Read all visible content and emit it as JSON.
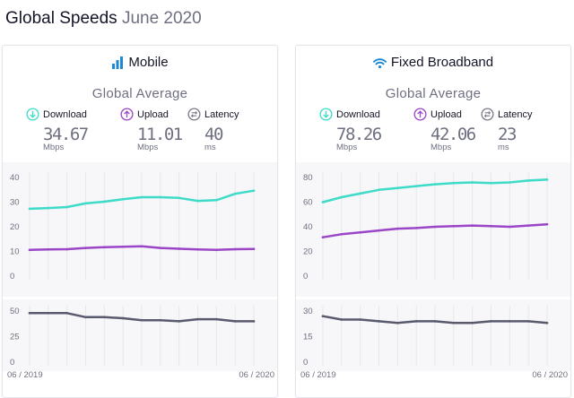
{
  "page": {
    "title": "Global Speeds",
    "date": "June 2020"
  },
  "colors": {
    "download": "#3ddbc8",
    "upload": "#9b45c7",
    "latency": "#5a5a6e",
    "icon_blue": "#1e88d3"
  },
  "labels": {
    "global_average": "Global Average",
    "download": "Download",
    "upload": "Upload",
    "latency": "Latency",
    "x_start": "06 / 2019",
    "x_end": "06 / 2020"
  },
  "cards": [
    {
      "title": "Mobile",
      "icon": "signal-bars-icon",
      "download": {
        "value": "34.67",
        "unit": "Mbps"
      },
      "upload": {
        "value": "11.01",
        "unit": "Mbps"
      },
      "latency": {
        "value": "40",
        "unit": "ms"
      }
    },
    {
      "title": "Fixed Broadband",
      "icon": "wifi-icon",
      "download": {
        "value": "78.26",
        "unit": "Mbps"
      },
      "upload": {
        "value": "42.06",
        "unit": "Mbps"
      },
      "latency": {
        "value": "23",
        "unit": "ms"
      }
    }
  ],
  "chart_data": [
    {
      "type": "line",
      "title": "Mobile",
      "panel": "speed",
      "x": [
        "06/2019",
        "07/2019",
        "08/2019",
        "09/2019",
        "10/2019",
        "11/2019",
        "12/2019",
        "01/2020",
        "02/2020",
        "03/2020",
        "04/2020",
        "05/2020",
        "06/2020"
      ],
      "ylim": [
        0,
        40
      ],
      "yticks": [
        0,
        10,
        20,
        30,
        40
      ],
      "series": [
        {
          "name": "Download",
          "values": [
            27.3,
            27.6,
            28.0,
            29.5,
            30.2,
            31.2,
            32.0,
            32.0,
            31.7,
            30.5,
            30.8,
            33.4,
            34.67
          ]
        },
        {
          "name": "Upload",
          "values": [
            10.6,
            10.8,
            10.9,
            11.4,
            11.7,
            11.9,
            12.1,
            11.4,
            11.1,
            10.8,
            10.6,
            10.9,
            11.01
          ]
        }
      ]
    },
    {
      "type": "line",
      "title": "Mobile",
      "panel": "latency",
      "x": [
        "06/2019",
        "07/2019",
        "08/2019",
        "09/2019",
        "10/2019",
        "11/2019",
        "12/2019",
        "01/2020",
        "02/2020",
        "03/2020",
        "04/2020",
        "05/2020",
        "06/2020"
      ],
      "ylim": [
        0,
        50
      ],
      "yticks": [
        0,
        25,
        50
      ],
      "series": [
        {
          "name": "Latency",
          "values": [
            48,
            48,
            48,
            44,
            44,
            43,
            41,
            41,
            40,
            42,
            42,
            40,
            40
          ]
        }
      ]
    },
    {
      "type": "line",
      "title": "Fixed Broadband",
      "panel": "speed",
      "x": [
        "06/2019",
        "07/2019",
        "08/2019",
        "09/2019",
        "10/2019",
        "11/2019",
        "12/2019",
        "01/2020",
        "02/2020",
        "03/2020",
        "04/2020",
        "05/2020",
        "06/2020"
      ],
      "ylim": [
        0,
        80
      ],
      "yticks": [
        0,
        20,
        40,
        60,
        80
      ],
      "series": [
        {
          "name": "Download",
          "values": [
            60,
            64,
            67,
            70,
            71.5,
            73,
            74.5,
            75.5,
            76,
            75.5,
            76,
            77.5,
            78.26
          ]
        },
        {
          "name": "Upload",
          "values": [
            31.5,
            34,
            35.5,
            37,
            38.5,
            39,
            40,
            40.5,
            41,
            40.5,
            40,
            41,
            42.06
          ]
        }
      ]
    },
    {
      "type": "line",
      "title": "Fixed Broadband",
      "panel": "latency",
      "x": [
        "06/2019",
        "07/2019",
        "08/2019",
        "09/2019",
        "10/2019",
        "11/2019",
        "12/2019",
        "01/2020",
        "02/2020",
        "03/2020",
        "04/2020",
        "05/2020",
        "06/2020"
      ],
      "ylim": [
        0,
        30
      ],
      "yticks": [
        0,
        15,
        30
      ],
      "series": [
        {
          "name": "Latency",
          "values": [
            27,
            25,
            25,
            24,
            23,
            24,
            24,
            23,
            23,
            24,
            24,
            24,
            23
          ]
        }
      ]
    }
  ]
}
